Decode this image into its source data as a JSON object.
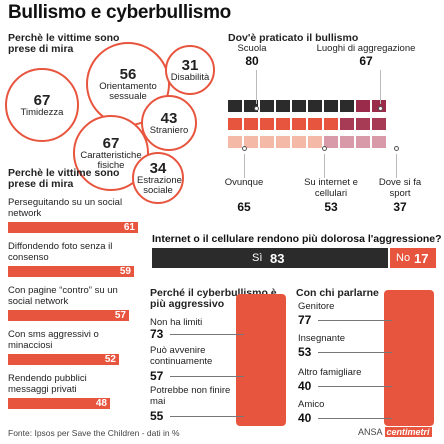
{
  "title": "Bullismo e cyberbullismo",
  "footer": {
    "source": "Fonte: Ipsos per Save the Children - dati in %",
    "logo_ansa": "ANSA",
    "logo_centimetri": "centimetri"
  },
  "chart_data": [
    {
      "type": "bubble",
      "title": "Perchè le vittime sono prese di mira",
      "items": [
        {
          "label": "Timidezza",
          "value": 67
        },
        {
          "label": "Orientamento sessuale",
          "value": 56
        },
        {
          "label": "Disabilità",
          "value": 31
        },
        {
          "label": "Caratteristiche fisiche",
          "value": 67
        },
        {
          "label": "Straniero",
          "value": 43
        },
        {
          "label": "Estrazione sociale",
          "value": 34
        }
      ]
    },
    {
      "type": "heatmap",
      "title": "Dov'è praticato il bullismo",
      "rows": [
        {
          "label": "Scuola",
          "value": 80
        },
        {
          "label": "Luoghi di aggregazione",
          "value": 67
        },
        {
          "label": "Ovunque",
          "value": 65
        },
        {
          "label": "Su internet e cellulari",
          "value": 53
        },
        {
          "label": "Dove si fa sport",
          "value": 37
        }
      ],
      "grid_rows": [
        {
          "color": "#2b2b2b",
          "filled": 8
        },
        {
          "color": "#e8553e",
          "filled": 7
        },
        {
          "color": "#f5b9a8",
          "filled": 6
        }
      ],
      "grid_cols": 10
    },
    {
      "type": "bar",
      "orientation": "horizontal",
      "title": "Perchè le vittime sono prese di mira",
      "categories": [
        "Perseguitando su un social network",
        "Diffondendo foto senza il consenso",
        "Con pagine “contro” su un social network",
        "Con sms aggressivi o minacciosi",
        "Rendendo pubblici messaggi privati"
      ],
      "values": [
        61,
        59,
        57,
        52,
        48
      ],
      "xlim": [
        0,
        61
      ]
    },
    {
      "type": "bar",
      "orientation": "horizontal",
      "stacked": true,
      "title": "Internet o il cellulare rendono più dolorosa l'aggressione?",
      "categories": [
        "Sì",
        "No"
      ],
      "values": [
        83,
        17
      ]
    },
    {
      "type": "bar",
      "title": "Perché il cyberbullismo è più aggressivo",
      "categories": [
        "Non ha limiti",
        "Può avvenire continuamente",
        "Potrebbe non finire mai"
      ],
      "values": [
        73,
        57,
        55
      ]
    },
    {
      "type": "bar",
      "title": "Con chi parlarne",
      "categories": [
        "Genitore",
        "Insegnante",
        "Altro famigliare",
        "Amico"
      ],
      "values": [
        77,
        53,
        40,
        40
      ]
    }
  ]
}
